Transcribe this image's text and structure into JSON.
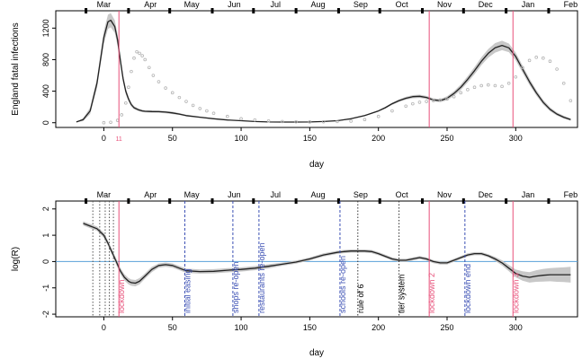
{
  "chart_data": [
    {
      "type": "line",
      "xlabel": "day",
      "ylabel": "England fatal infections",
      "xlim": [
        -35,
        345
      ],
      "ylim": [
        -60,
        1420
      ],
      "x_ticks": [
        0,
        50,
        100,
        150,
        200,
        250,
        300
      ],
      "y_ticks": [
        0,
        400,
        800,
        1200
      ],
      "months": [
        {
          "label": "Mar",
          "day": 0
        },
        {
          "label": "Apr",
          "day": 34
        },
        {
          "label": "May",
          "day": 64
        },
        {
          "label": "Jun",
          "day": 95
        },
        {
          "label": "Jul",
          "day": 125
        },
        {
          "label": "Aug",
          "day": 156
        },
        {
          "label": "Sep",
          "day": 187
        },
        {
          "label": "Oct",
          "day": 217
        },
        {
          "label": "Nov",
          "day": 248
        },
        {
          "label": "Dec",
          "day": 278
        },
        {
          "label": "Jan",
          "day": 309
        },
        {
          "label": "Feb",
          "day": 340
        }
      ],
      "month_ticks": [
        -13,
        18,
        48,
        79,
        109,
        140,
        171,
        201,
        232,
        262,
        293,
        324
      ],
      "vlines": [
        {
          "x": 11,
          "label": "11",
          "color": "#e8507a"
        },
        {
          "x": 237,
          "color": "#e8507a"
        },
        {
          "x": 298,
          "color": "#e8507a"
        }
      ],
      "series": [
        {
          "style": "line",
          "color": "#222222",
          "x": [
            -20,
            -15,
            -10,
            -5,
            0,
            3,
            5,
            8,
            10,
            12,
            14,
            16,
            18,
            20,
            22,
            25,
            28,
            30,
            35,
            40,
            45,
            50,
            55,
            60,
            70,
            80,
            90,
            100,
            110,
            120,
            130,
            140,
            150,
            160,
            170,
            180,
            190,
            200,
            205,
            210,
            215,
            220,
            225,
            230,
            235,
            240,
            245,
            250,
            255,
            260,
            265,
            270,
            275,
            280,
            285,
            290,
            295,
            300,
            305,
            310,
            315,
            320,
            325,
            330,
            335,
            340
          ],
          "y": [
            10,
            40,
            150,
            500,
            1080,
            1280,
            1300,
            1220,
            1050,
            800,
            560,
            400,
            300,
            230,
            190,
            165,
            150,
            145,
            142,
            140,
            135,
            125,
            110,
            90,
            70,
            50,
            35,
            25,
            15,
            10,
            8,
            8,
            10,
            15,
            25,
            50,
            90,
            150,
            190,
            240,
            280,
            310,
            330,
            335,
            320,
            290,
            280,
            310,
            370,
            450,
            550,
            660,
            780,
            880,
            950,
            980,
            950,
            840,
            680,
            520,
            380,
            260,
            170,
            110,
            70,
            40
          ],
          "band": [
            0,
            20,
            40,
            60,
            80,
            90,
            90,
            80,
            70,
            60,
            50,
            40,
            30,
            25,
            20,
            18,
            15,
            15,
            15,
            15,
            15,
            15,
            12,
            10,
            8,
            6,
            5,
            4,
            3,
            3,
            3,
            3,
            3,
            4,
            5,
            6,
            8,
            10,
            12,
            14,
            16,
            18,
            20,
            20,
            20,
            20,
            20,
            25,
            30,
            35,
            40,
            45,
            50,
            55,
            60,
            60,
            55,
            50,
            45,
            40,
            35,
            30,
            25,
            20,
            18,
            15
          ]
        },
        {
          "style": "points",
          "color": "#b4b4b4",
          "x": [
            0,
            5,
            10,
            13,
            16,
            18,
            20,
            22,
            24,
            26,
            28,
            30,
            33,
            36,
            40,
            45,
            50,
            55,
            60,
            65,
            70,
            75,
            80,
            90,
            100,
            110,
            120,
            130,
            140,
            150,
            160,
            170,
            180,
            190,
            200,
            210,
            220,
            225,
            230,
            235,
            240,
            245,
            250,
            255,
            260,
            265,
            270,
            275,
            280,
            285,
            290,
            295,
            300,
            305,
            310,
            315,
            320,
            325,
            330,
            335,
            340
          ],
          "y": [
            0,
            5,
            30,
            100,
            250,
            450,
            650,
            820,
            900,
            880,
            850,
            800,
            700,
            600,
            520,
            440,
            380,
            320,
            270,
            220,
            180,
            150,
            120,
            80,
            50,
            35,
            22,
            15,
            12,
            10,
            12,
            15,
            20,
            40,
            80,
            150,
            210,
            240,
            260,
            270,
            280,
            290,
            300,
            330,
            380,
            420,
            450,
            470,
            480,
            470,
            460,
            500,
            580,
            700,
            790,
            830,
            820,
            780,
            680,
            500,
            280
          ]
        }
      ]
    },
    {
      "type": "line",
      "xlabel": "day",
      "ylabel": "log(R)",
      "xlim": [
        -35,
        345
      ],
      "ylim": [
        -2.1,
        2.3
      ],
      "x_ticks": [
        0,
        50,
        100,
        150,
        200,
        250,
        300
      ],
      "y_ticks": [
        -2,
        -1,
        0,
        1,
        2
      ],
      "months": [
        {
          "label": "Mar",
          "day": 0
        },
        {
          "label": "Apr",
          "day": 34
        },
        {
          "label": "May",
          "day": 64
        },
        {
          "label": "Jun",
          "day": 95
        },
        {
          "label": "Jul",
          "day": 125
        },
        {
          "label": "Aug",
          "day": 156
        },
        {
          "label": "Sep",
          "day": 187
        },
        {
          "label": "Oct",
          "day": 217
        },
        {
          "label": "Nov",
          "day": 248
        },
        {
          "label": "Dec",
          "day": 278
        },
        {
          "label": "Jan",
          "day": 309
        },
        {
          "label": "Feb",
          "day": 340
        }
      ],
      "month_ticks": [
        -13,
        18,
        48,
        79,
        109,
        140,
        171,
        201,
        232,
        262,
        293,
        324
      ],
      "hline": {
        "y": 0,
        "color": "#5aa0d8"
      },
      "vlines": [
        {
          "x": -8,
          "style": "dotted",
          "color": "#555555"
        },
        {
          "x": -3,
          "style": "dotted",
          "color": "#555555"
        },
        {
          "x": 1,
          "style": "dotted",
          "color": "#555555"
        },
        {
          "x": 4,
          "style": "dotted",
          "color": "#555555"
        },
        {
          "x": 7,
          "style": "dotted",
          "color": "#555555"
        },
        {
          "x": 11,
          "style": "solid",
          "color": "#e8507a",
          "label": "lockdown"
        },
        {
          "x": 59,
          "style": "dashed",
          "color": "#3c50b4",
          "label": "initial easing"
        },
        {
          "x": 94,
          "style": "dashed",
          "color": "#3c50b4",
          "label": "shops re-open"
        },
        {
          "x": 113,
          "style": "dashed",
          "color": "#3c50b4",
          "label": "restaurants re-open"
        },
        {
          "x": 172,
          "style": "dashed",
          "color": "#3c50b4",
          "label": "schools re-open"
        },
        {
          "x": 185,
          "style": "dotted",
          "color": "#333333",
          "label": "rule of 6"
        },
        {
          "x": 215,
          "style": "dotted",
          "color": "#333333",
          "label": "tier system"
        },
        {
          "x": 237,
          "style": "solid",
          "color": "#e8507a",
          "label": "lockdown 2"
        },
        {
          "x": 263,
          "style": "dashed",
          "color": "#3c50b4",
          "label": "lockdown end"
        },
        {
          "x": 298,
          "style": "solid",
          "color": "#e8507a",
          "label": "lockdown 3"
        }
      ],
      "series": [
        {
          "style": "line",
          "color": "#222222",
          "x": [
            -15,
            -10,
            -5,
            0,
            3,
            6,
            9,
            12,
            15,
            18,
            20,
            23,
            26,
            30,
            35,
            40,
            45,
            50,
            55,
            60,
            70,
            80,
            90,
            100,
            110,
            120,
            130,
            140,
            150,
            160,
            170,
            175,
            180,
            185,
            190,
            195,
            200,
            205,
            210,
            215,
            220,
            225,
            230,
            235,
            240,
            245,
            250,
            255,
            260,
            265,
            270,
            275,
            280,
            285,
            290,
            295,
            300,
            305,
            310,
            315,
            320,
            325,
            330,
            335,
            340
          ],
          "y": [
            1.45,
            1.35,
            1.25,
            1.0,
            0.7,
            0.35,
            0.0,
            -0.35,
            -0.6,
            -0.75,
            -0.8,
            -0.82,
            -0.75,
            -0.55,
            -0.3,
            -0.15,
            -0.12,
            -0.15,
            -0.25,
            -0.35,
            -0.38,
            -0.37,
            -0.33,
            -0.3,
            -0.25,
            -0.18,
            -0.1,
            -0.02,
            0.1,
            0.25,
            0.35,
            0.38,
            0.4,
            0.4,
            0.4,
            0.38,
            0.3,
            0.2,
            0.1,
            0.05,
            0.05,
            0.1,
            0.15,
            0.1,
            0.0,
            -0.05,
            -0.05,
            0.05,
            0.15,
            0.25,
            0.3,
            0.3,
            0.22,
            0.1,
            -0.05,
            -0.25,
            -0.45,
            -0.55,
            -0.6,
            -0.55,
            -0.52,
            -0.5,
            -0.5,
            -0.5,
            -0.5
          ],
          "band": [
            0.08,
            0.08,
            0.08,
            0.1,
            0.1,
            0.1,
            0.12,
            0.12,
            0.12,
            0.12,
            0.12,
            0.12,
            0.12,
            0.1,
            0.1,
            0.08,
            0.08,
            0.08,
            0.08,
            0.08,
            0.08,
            0.08,
            0.08,
            0.08,
            0.08,
            0.08,
            0.06,
            0.06,
            0.06,
            0.06,
            0.06,
            0.06,
            0.06,
            0.06,
            0.06,
            0.06,
            0.06,
            0.06,
            0.06,
            0.06,
            0.06,
            0.06,
            0.06,
            0.06,
            0.06,
            0.06,
            0.06,
            0.06,
            0.06,
            0.06,
            0.06,
            0.06,
            0.06,
            0.08,
            0.1,
            0.12,
            0.15,
            0.18,
            0.2,
            0.22,
            0.24,
            0.25,
            0.27,
            0.28,
            0.3
          ]
        }
      ]
    }
  ]
}
